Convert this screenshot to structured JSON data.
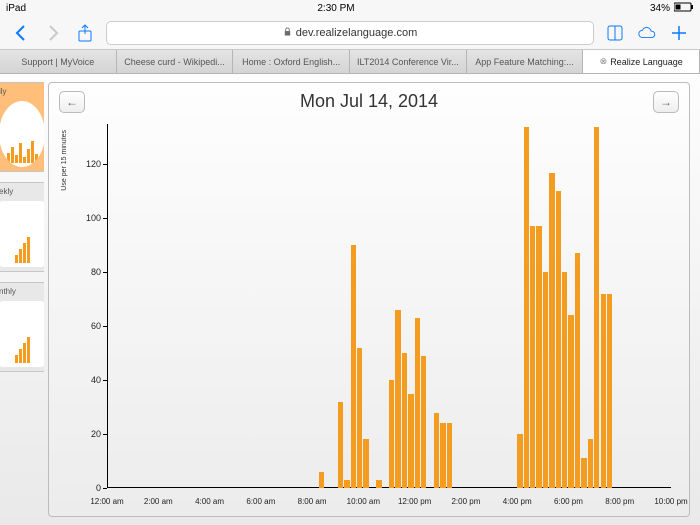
{
  "status": {
    "device": "iPad",
    "time": "2:30 PM",
    "battery": "34%"
  },
  "url": "dev.realizelanguage.com",
  "tabs": [
    {
      "label": "Support | MyVoice"
    },
    {
      "label": "Cheese curd - Wikipedi..."
    },
    {
      "label": "Home : Oxford English..."
    },
    {
      "label": "ILT2014 Conference Vir..."
    },
    {
      "label": "App Feature Matching:..."
    },
    {
      "label": "Realize Language",
      "active": true
    }
  ],
  "sidebar": [
    {
      "label": "ily",
      "selected": true,
      "shape": "circle"
    },
    {
      "label": "ekly",
      "shape": "square"
    },
    {
      "label": "nthly",
      "shape": "square"
    }
  ],
  "chart": {
    "title": "Mon Jul 14, 2014",
    "type": "bar",
    "y_axis_label": "Use per 15 minutes",
    "bar_color": "#f39c1f",
    "background_color": "#f3f3f1",
    "ylim": [
      0,
      135
    ],
    "yticks": [
      0,
      20,
      40,
      60,
      80,
      100,
      120
    ],
    "x_start_hour": 0,
    "x_end_hour": 22,
    "x_tick_step_hours": 2,
    "x_labels": [
      "12:00 am",
      "2:00 am",
      "4:00 am",
      "6:00 am",
      "8:00 am",
      "10:00 am",
      "12:00 pm",
      "2:00 pm",
      "4:00 pm",
      "6:00 pm",
      "8:00 pm",
      "10:00 pm"
    ],
    "bins_per_hour": 4,
    "values": [
      0,
      0,
      0,
      0,
      0,
      0,
      0,
      0,
      0,
      0,
      0,
      0,
      0,
      0,
      0,
      0,
      0,
      0,
      0,
      0,
      0,
      0,
      0,
      0,
      0,
      0,
      0,
      0,
      0,
      0,
      0,
      0,
      0,
      6,
      0,
      0,
      32,
      3,
      90,
      52,
      18,
      0,
      3,
      0,
      40,
      66,
      50,
      35,
      63,
      49,
      0,
      28,
      24,
      24,
      0,
      0,
      0,
      0,
      0,
      0,
      0,
      0,
      0,
      0,
      20,
      134,
      97,
      97,
      80,
      117,
      110,
      80,
      64,
      87,
      11,
      18,
      134,
      72,
      72,
      0,
      0,
      0,
      0,
      0,
      0,
      0,
      0,
      0
    ]
  }
}
